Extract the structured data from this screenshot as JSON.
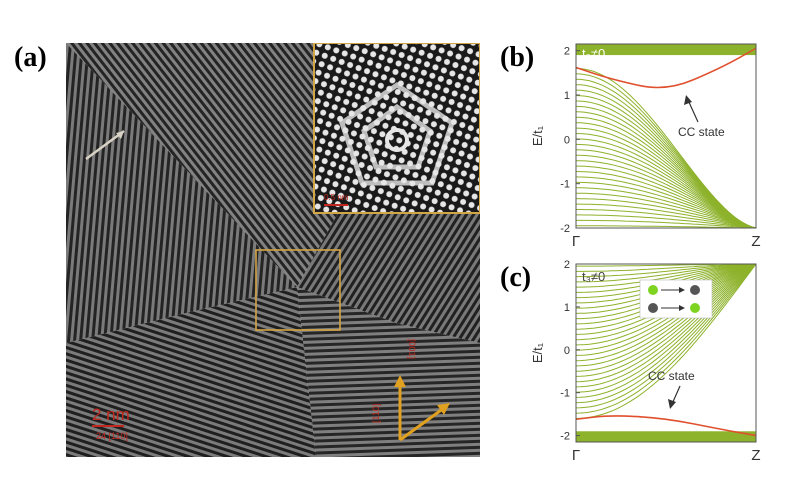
{
  "panels": {
    "a": {
      "label": "(a)",
      "scale_bar_main": "2 nm",
      "scale_bar_sub": "24 [110]",
      "inset_scale_bar": "0.5 nm",
      "axis_labels": [
        "[001]",
        "[110]"
      ],
      "colors": {
        "inset_frame": "#d4a544",
        "box": "#d4a544",
        "arrow_axes": "#e0a020",
        "scale_text": "#c0281e"
      }
    },
    "b": {
      "label": "(b)",
      "param_label": "t₃≠0",
      "annotation": "CC state",
      "ylabel": "E/t₁",
      "xticks": [
        "Γ",
        "Z"
      ],
      "yticks": [
        "-2",
        "-1",
        "0",
        "1",
        "2"
      ]
    },
    "c": {
      "label": "(c)",
      "param_label": "t₃≠0",
      "annotation": "CC state",
      "ylabel": "E/t₁",
      "xticks": [
        "Γ",
        "Z"
      ],
      "yticks": [
        "-2",
        "-1",
        "0",
        "1",
        "2"
      ]
    }
  },
  "chart_data": [
    {
      "type": "line",
      "panel": "b",
      "xticks": [
        "Γ",
        "Z"
      ],
      "ylim": [
        -2,
        2.15
      ],
      "band_color": "#8db22b",
      "cc_color": "#e0502e",
      "bulk_bands": {
        "count": 30,
        "top_at_Gamma": 1.6,
        "bottom_at_Gamma": -1.95,
        "converge_at_Z": -2.0
      },
      "flat_band": {
        "from": 1.9,
        "to": 2.15
      },
      "cc_state": {
        "x": [
          0,
          0.2,
          0.5,
          0.8,
          1.0
        ],
        "y": [
          1.62,
          1.35,
          1.08,
          1.6,
          2.05
        ]
      }
    },
    {
      "type": "line",
      "panel": "c",
      "xticks": [
        "Γ",
        "Z"
      ],
      "ylim": [
        -2.15,
        2
      ],
      "band_color": "#8db22b",
      "cc_color": "#e0502e",
      "bulk_bands": {
        "count": 30,
        "bottom_at_Gamma": -1.6,
        "top_at_Gamma": 1.95,
        "converge_at_Z": 2.0
      },
      "flat_band": {
        "from": -2.15,
        "to": -1.9
      },
      "cc_state": {
        "x": [
          0,
          0.2,
          0.5,
          0.8,
          1.0
        ],
        "y": [
          -1.62,
          -1.52,
          -1.6,
          -1.85,
          -2.0
        ]
      }
    }
  ]
}
